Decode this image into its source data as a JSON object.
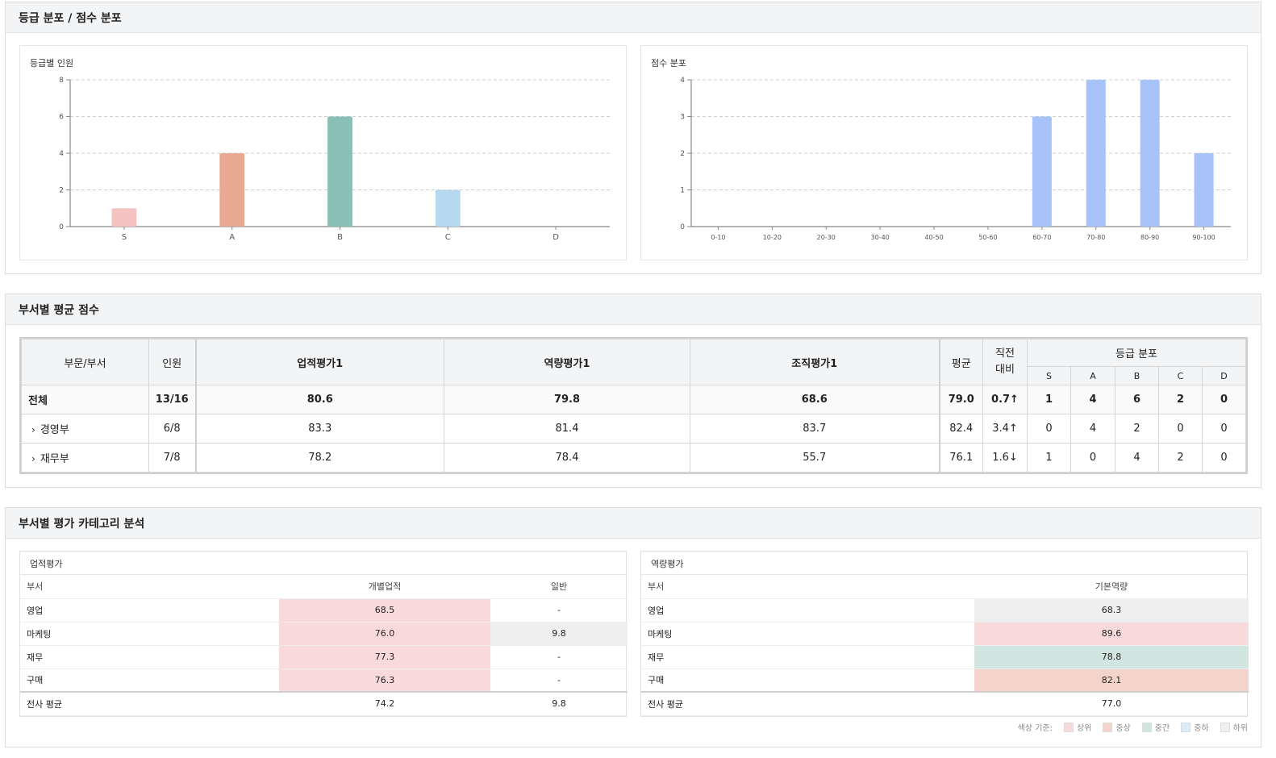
{
  "sections": {
    "grade_dist_title": "등급 분포 / 점수 분포",
    "dept_avg_title": "부서별 평균 점수",
    "category_title": "부서별 평가 카테고리 분석"
  },
  "chart_data": [
    {
      "type": "bar",
      "title": "등급별 인원",
      "categories": [
        "S",
        "A",
        "B",
        "C",
        "D"
      ],
      "values": [
        1,
        4,
        6,
        2,
        0
      ],
      "colors": [
        "#f6c3c3",
        "#e8a892",
        "#8abfb6",
        "#b5d9ee",
        "#cccccc"
      ],
      "yticks": [
        "0",
        "2",
        "4",
        "6",
        "8"
      ],
      "ylim": [
        0,
        8
      ]
    },
    {
      "type": "bar",
      "title": "점수 분포",
      "categories": [
        "0-10",
        "10-20",
        "20-30",
        "30-40",
        "40-50",
        "50-60",
        "60-70",
        "70-80",
        "80-90",
        "90-100"
      ],
      "values": [
        0,
        0,
        0,
        0,
        0,
        0,
        3,
        4,
        4,
        2
      ],
      "color": "#a8c3f8",
      "yticks": [
        "0",
        "1",
        "2",
        "3",
        "4"
      ],
      "ylim": [
        0,
        4
      ]
    }
  ],
  "dept_table": {
    "headers": {
      "dept": "부문/부서",
      "count": "인원",
      "eval1": "업적평가1",
      "eval2": "역량평가1",
      "eval3": "조직평가1",
      "avg": "평균",
      "prev": "직전\n대비",
      "grade": "등급 분포",
      "grades": [
        "S",
        "A",
        "B",
        "C",
        "D"
      ]
    },
    "rows": [
      {
        "name": "전체",
        "count": "13/16",
        "e1": "80.6",
        "e2": "79.8",
        "e3": "68.6",
        "avg": "79.0",
        "prev": "0.7↑",
        "g": [
          "1",
          "4",
          "6",
          "2",
          "0"
        ]
      },
      {
        "name": "경영부",
        "count": "6/8",
        "e1": "83.3",
        "e2": "81.4",
        "e3": "83.7",
        "avg": "82.4",
        "prev": "3.4↑",
        "g": [
          "0",
          "4",
          "2",
          "0",
          "0"
        ]
      },
      {
        "name": "재무부",
        "count": "7/8",
        "e1": "78.2",
        "e2": "78.4",
        "e3": "55.7",
        "avg": "76.1",
        "prev": "1.6↓",
        "g": [
          "1",
          "0",
          "4",
          "2",
          "0"
        ]
      }
    ]
  },
  "perf_card": {
    "title": "업적평가",
    "headers": [
      "부서",
      "개별업적",
      "일반"
    ],
    "rows": [
      {
        "name": "영업",
        "a": "68.5",
        "b": "-"
      },
      {
        "name": "마케팅",
        "a": "76.0",
        "b": "9.8"
      },
      {
        "name": "재무",
        "a": "77.3",
        "b": "-"
      },
      {
        "name": "구매",
        "a": "76.3",
        "b": "-"
      }
    ],
    "avg": {
      "name": "전사 평균",
      "a": "74.2",
      "b": "9.8"
    }
  },
  "comp_card": {
    "title": "역량평가",
    "headers": [
      "부서",
      "기본역량"
    ],
    "rows": [
      {
        "name": "영업",
        "a": "68.3"
      },
      {
        "name": "마케팅",
        "a": "89.6"
      },
      {
        "name": "재무",
        "a": "78.8"
      },
      {
        "name": "구매",
        "a": "82.1"
      }
    ],
    "avg": {
      "name": "전사 평균",
      "a": "77.0"
    }
  },
  "legend": {
    "label": "색상 기준:",
    "items": [
      {
        "name": "상위",
        "color": "#f8dada"
      },
      {
        "name": "중상",
        "color": "#f3d3ca"
      },
      {
        "name": "중간",
        "color": "#d2e6e1"
      },
      {
        "name": "중하",
        "color": "#dcebf6"
      },
      {
        "name": "하위",
        "color": "#efefef"
      }
    ]
  },
  "cell_colors": {
    "top": "#f8dada",
    "upper": "#f3d3ca",
    "mid": "#d2e6e1",
    "low": "#efefef"
  }
}
